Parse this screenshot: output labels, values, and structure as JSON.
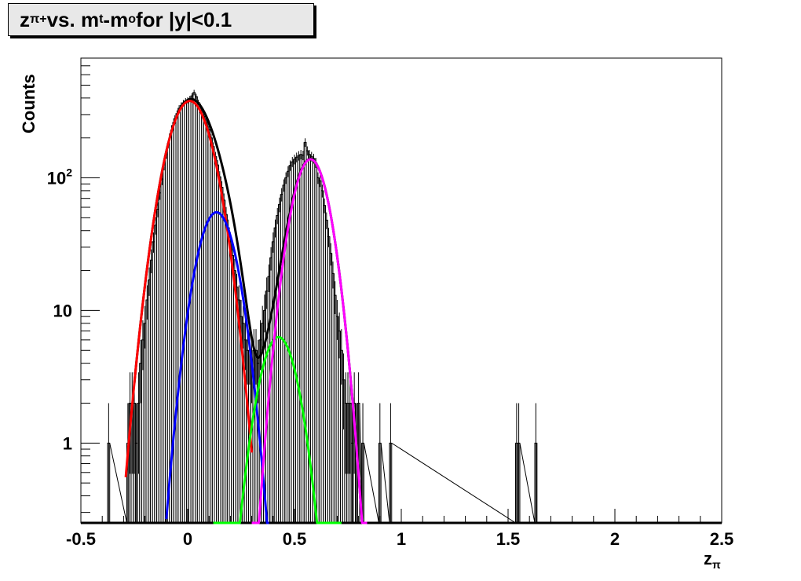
{
  "title": {
    "z": "z",
    "z_sub": "π+",
    "vs": " vs. m",
    "m_sub1": "t",
    "minus": "-m",
    "m_sub2": "o",
    "rest": " for |y|<0.1"
  },
  "chart_data": {
    "type": "line",
    "xlabel": "z",
    "xlabel_sub": "π",
    "ylabel": "Counts",
    "xlim": [
      -0.5,
      2.5
    ],
    "ylim": [
      0.25,
      800
    ],
    "yscale": "log",
    "grid": false,
    "x_ticks": [
      -0.5,
      0,
      0.5,
      1,
      1.5,
      2,
      2.5
    ],
    "x_tick_labels": [
      "-0.5",
      "0",
      "0.5",
      "1",
      "1.5",
      "2",
      "2.5"
    ],
    "y_tick_labels": [
      {
        "value": 1,
        "label": "1"
      },
      {
        "value": 10,
        "label": "10"
      },
      {
        "value": 100,
        "base": "10",
        "exp": "2"
      }
    ],
    "series": [
      {
        "color": "#ff0000",
        "shape": "gaussian",
        "amplitude": 380,
        "mean": 0.01,
        "sigma": 0.083,
        "range": [
          -0.29,
          0.3
        ]
      },
      {
        "color": "#0000ff",
        "shape": "gaussian",
        "amplitude": 55,
        "mean": 0.135,
        "sigma": 0.072,
        "range": [
          -0.1,
          0.38
        ]
      },
      {
        "color": "#00ff00",
        "shape": "gaussian",
        "amplitude": 6.3,
        "mean": 0.425,
        "sigma": 0.071,
        "range": [
          0.12,
          0.72
        ]
      },
      {
        "color": "#ff00ff",
        "shape": "gaussian",
        "amplitude": 138,
        "mean": 0.575,
        "sigma": 0.068,
        "range": [
          0.3,
          0.84
        ]
      },
      {
        "color": "#000000",
        "shape": "sum",
        "range": [
          -0.25,
          0.83
        ]
      }
    ],
    "histogram": {
      "color": "#000000",
      "bin_width": 0.01,
      "points": [
        [
          -0.37,
          1
        ],
        [
          -0.28,
          1
        ],
        [
          -0.27,
          2
        ],
        [
          -0.26,
          2
        ],
        [
          -0.25,
          2
        ],
        [
          -0.24,
          1
        ],
        [
          -0.23,
          2
        ],
        [
          -0.22,
          4
        ],
        [
          -0.21,
          6
        ],
        [
          -0.2,
          8
        ],
        [
          -0.19,
          12
        ],
        [
          -0.18,
          17
        ],
        [
          -0.17,
          24
        ],
        [
          -0.16,
          33
        ],
        [
          -0.15,
          44
        ],
        [
          -0.14,
          58
        ],
        [
          -0.13,
          77
        ],
        [
          -0.12,
          98
        ],
        [
          -0.11,
          125
        ],
        [
          -0.1,
          152
        ],
        [
          -0.09,
          182
        ],
        [
          -0.08,
          215
        ],
        [
          -0.07,
          248
        ],
        [
          -0.06,
          280
        ],
        [
          -0.05,
          305
        ],
        [
          -0.04,
          335
        ],
        [
          -0.03,
          352
        ],
        [
          -0.02,
          368
        ],
        [
          -0.01,
          380
        ],
        [
          0.0,
          385
        ],
        [
          0.01,
          395
        ],
        [
          0.02,
          415
        ],
        [
          0.03,
          440
        ],
        [
          0.04,
          410
        ],
        [
          0.05,
          370
        ],
        [
          0.06,
          345
        ],
        [
          0.07,
          320
        ],
        [
          0.08,
          290
        ],
        [
          0.09,
          260
        ],
        [
          0.1,
          232
        ],
        [
          0.11,
          200
        ],
        [
          0.12,
          172
        ],
        [
          0.13,
          145
        ],
        [
          0.14,
          125
        ],
        [
          0.15,
          102
        ],
        [
          0.16,
          85
        ],
        [
          0.17,
          68
        ],
        [
          0.18,
          53
        ],
        [
          0.19,
          42
        ],
        [
          0.2,
          33
        ],
        [
          0.21,
          26
        ],
        [
          0.22,
          20
        ],
        [
          0.23,
          15
        ],
        [
          0.24,
          12
        ],
        [
          0.25,
          9
        ],
        [
          0.26,
          8
        ],
        [
          0.27,
          6
        ],
        [
          0.28,
          5
        ],
        [
          0.29,
          5
        ],
        [
          0.3,
          4
        ],
        [
          0.31,
          5
        ],
        [
          0.32,
          5
        ],
        [
          0.33,
          4
        ],
        [
          0.34,
          6
        ],
        [
          0.35,
          8
        ],
        [
          0.36,
          10
        ],
        [
          0.37,
          14
        ],
        [
          0.38,
          18
        ],
        [
          0.39,
          25
        ],
        [
          0.4,
          33
        ],
        [
          0.41,
          42
        ],
        [
          0.42,
          52
        ],
        [
          0.43,
          63
        ],
        [
          0.44,
          75
        ],
        [
          0.45,
          88
        ],
        [
          0.46,
          100
        ],
        [
          0.47,
          112
        ],
        [
          0.48,
          124
        ],
        [
          0.49,
          132
        ],
        [
          0.5,
          138
        ],
        [
          0.51,
          143
        ],
        [
          0.52,
          147
        ],
        [
          0.53,
          150
        ],
        [
          0.54,
          148
        ],
        [
          0.55,
          185
        ],
        [
          0.56,
          160
        ],
        [
          0.57,
          150
        ],
        [
          0.58,
          145
        ],
        [
          0.59,
          140
        ],
        [
          0.6,
          130
        ],
        [
          0.61,
          100
        ],
        [
          0.62,
          95
        ],
        [
          0.63,
          80
        ],
        [
          0.64,
          62
        ],
        [
          0.65,
          48
        ],
        [
          0.66,
          36
        ],
        [
          0.67,
          27
        ],
        [
          0.68,
          19
        ],
        [
          0.69,
          13
        ],
        [
          0.7,
          9
        ],
        [
          0.71,
          7
        ],
        [
          0.72,
          5
        ],
        [
          0.73,
          3
        ],
        [
          0.74,
          2
        ],
        [
          0.75,
          2
        ],
        [
          0.76,
          2
        ],
        [
          0.77,
          1
        ],
        [
          0.78,
          2
        ],
        [
          0.79,
          1
        ],
        [
          0.8,
          2
        ],
        [
          0.82,
          1
        ],
        [
          0.9,
          1
        ],
        [
          0.95,
          1
        ],
        [
          1.54,
          1
        ],
        [
          1.55,
          1
        ],
        [
          1.63,
          1
        ]
      ]
    }
  }
}
